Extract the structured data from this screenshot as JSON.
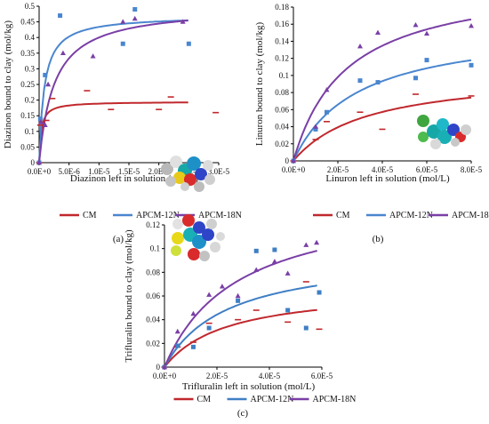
{
  "panel_labels": [
    "(a)",
    "(b)",
    "(c)"
  ],
  "legend": [
    "CM",
    "APCM-12N",
    "APCM-18N"
  ],
  "chart_data": [
    {
      "type": "scatter",
      "panel": "(a)",
      "xlabel": "Diazinon left in solution (mol/L)",
      "ylabel": "Diazinon bound to clay (mol/kg)",
      "xlim": [
        0,
        3e-05
      ],
      "ylim": [
        0,
        0.5
      ],
      "xticks": [
        "0.0E+0",
        "5.0E-6",
        "1.0E-5",
        "1.5E-5",
        "2.0E-5",
        "2.5E-5",
        "3.0E-5"
      ],
      "yticks": [
        "0",
        "0.05",
        "0.1",
        "0.15",
        "0.2",
        "0.25",
        "0.3",
        "0.35",
        "0.4",
        "0.45",
        "0.5"
      ],
      "series": [
        {
          "name": "CM",
          "color": "#c0282d",
          "marker": "dash",
          "points": [
            [
              0,
              0
            ],
            [
              2e-07,
              0.12
            ],
            [
              5e-07,
              0.13
            ],
            [
              1.2e-06,
              0.135
            ],
            [
              2.2e-06,
              0.205
            ],
            [
              8e-06,
              0.23
            ],
            [
              1.2e-05,
              0.17
            ],
            [
              2e-05,
              0.17
            ],
            [
              2.2e-05,
              0.21
            ],
            [
              2.95e-05,
              0.16
            ]
          ],
          "fit": {
            "qmax": 0.195,
            "k": 3000000
          }
        },
        {
          "name": "APCM-12N",
          "color": "#4a86cf",
          "marker": "square",
          "points": [
            [
              0,
              0
            ],
            [
              2e-07,
              0.14
            ],
            [
              1e-06,
              0.28
            ],
            [
              3.5e-06,
              0.47
            ],
            [
              1.4e-05,
              0.38
            ],
            [
              1.6e-05,
              0.49
            ],
            [
              2.5e-05,
              0.38
            ]
          ],
          "fit": {
            "qmax": 0.47,
            "k": 1200000
          }
        },
        {
          "name": "APCM-18N",
          "color": "#7a3fa6",
          "marker": "triangle",
          "points": [
            [
              0,
              0
            ],
            [
              3e-07,
              0.13
            ],
            [
              1e-06,
              0.12
            ],
            [
              1.5e-06,
              0.25
            ],
            [
              4e-06,
              0.35
            ],
            [
              9e-06,
              0.34
            ],
            [
              1.4e-05,
              0.45
            ],
            [
              1.6e-05,
              0.46
            ],
            [
              2.4e-05,
              0.45
            ]
          ],
          "fit": {
            "qmax": 0.5,
            "k": 400000
          }
        }
      ]
    },
    {
      "type": "scatter",
      "panel": "(b)",
      "xlabel": "Linuron left in solution (mol/L)",
      "ylabel": "Linuron bound to clay (mol/kg)",
      "xlim": [
        0,
        8e-05
      ],
      "ylim": [
        0,
        0.18
      ],
      "xticks": [
        "0.0E+0",
        "2.0E-5",
        "4.0E-5",
        "6.0E-5",
        "8.0E-5"
      ],
      "yticks": [
        "0",
        "0.02",
        "0.04",
        "0.06",
        "0.08",
        "0.1",
        "0.12",
        "0.14",
        "0.16",
        "0.18"
      ],
      "series": [
        {
          "name": "CM",
          "color": "#c0282d",
          "marker": "dash",
          "points": [
            [
              0,
              0
            ],
            [
              1e-05,
              0.025
            ],
            [
              1.5e-05,
              0.046
            ],
            [
              3e-05,
              0.057
            ],
            [
              4e-05,
              0.037
            ],
            [
              5.5e-05,
              0.078
            ],
            [
              8e-05,
              0.076
            ]
          ],
          "fit": {
            "qmax": 0.105,
            "k": 30000
          }
        },
        {
          "name": "APCM-12N",
          "color": "#4a86cf",
          "marker": "square",
          "points": [
            [
              0,
              0
            ],
            [
              1e-05,
              0.037
            ],
            [
              1.5e-05,
              0.057
            ],
            [
              3e-05,
              0.094
            ],
            [
              3.8e-05,
              0.092
            ],
            [
              5.5e-05,
              0.097
            ],
            [
              6e-05,
              0.118
            ],
            [
              8e-05,
              0.112
            ]
          ],
          "fit": {
            "qmax": 0.16,
            "k": 35000
          }
        },
        {
          "name": "APCM-18N",
          "color": "#7a3fa6",
          "marker": "triangle",
          "points": [
            [
              0,
              0
            ],
            [
              1e-05,
              0.04
            ],
            [
              1.5e-05,
              0.083
            ],
            [
              3e-05,
              0.134
            ],
            [
              3.8e-05,
              0.15
            ],
            [
              5.5e-05,
              0.159
            ],
            [
              6e-05,
              0.149
            ],
            [
              8e-05,
              0.158
            ]
          ],
          "fit": {
            "qmax": 0.215,
            "k": 42000
          }
        }
      ]
    },
    {
      "type": "scatter",
      "panel": "(c)",
      "xlabel": "Trifluralin left in solution (mol/L)",
      "ylabel": "Trifluralin bound to clay (mol/kg)",
      "xlim": [
        0,
        6e-05
      ],
      "ylim": [
        0,
        0.12
      ],
      "xticks": [
        "0.0E+0",
        "2.0E-5",
        "4.0E-5",
        "6.0E-5"
      ],
      "yticks": [
        "0",
        "0.02",
        "0.04",
        "0.06",
        "0.08",
        "0.1",
        "0.12"
      ],
      "series": [
        {
          "name": "CM",
          "color": "#c0282d",
          "marker": "dash",
          "points": [
            [
              0,
              0
            ],
            [
              5e-06,
              0.017
            ],
            [
              1.1e-05,
              0.021
            ],
            [
              1.7e-05,
              0.037
            ],
            [
              2.8e-05,
              0.04
            ],
            [
              3.5e-05,
              0.048
            ],
            [
              4.7e-05,
              0.038
            ],
            [
              5.4e-05,
              0.072
            ],
            [
              5.9e-05,
              0.032
            ]
          ],
          "fit": {
            "qmax": 0.068,
            "k": 42000
          }
        },
        {
          "name": "APCM-12N",
          "color": "#3f7fc4",
          "marker": "square",
          "points": [
            [
              0,
              0
            ],
            [
              5e-06,
              0.018
            ],
            [
              1.1e-05,
              0.017
            ],
            [
              1.7e-05,
              0.033
            ],
            [
              2.8e-05,
              0.056
            ],
            [
              3.5e-05,
              0.098
            ],
            [
              4.2e-05,
              0.099
            ],
            [
              4.7e-05,
              0.048
            ],
            [
              5.4e-05,
              0.033
            ],
            [
              5.9e-05,
              0.063
            ]
          ],
          "fit": {
            "qmax": 0.097,
            "k": 42000
          }
        },
        {
          "name": "APCM-18N",
          "color": "#7a3fa6",
          "marker": "triangle",
          "points": [
            [
              0,
              0
            ],
            [
              5e-06,
              0.03
            ],
            [
              1.1e-05,
              0.045
            ],
            [
              1.7e-05,
              0.061
            ],
            [
              2.2e-05,
              0.068
            ],
            [
              2.8e-05,
              0.06
            ],
            [
              3.5e-05,
              0.082
            ],
            [
              4.2e-05,
              0.089
            ],
            [
              4.7e-05,
              0.079
            ],
            [
              5.4e-05,
              0.103
            ],
            [
              5.8e-05,
              0.105
            ]
          ],
          "fit": {
            "qmax": 0.145,
            "k": 36000
          }
        }
      ]
    }
  ]
}
